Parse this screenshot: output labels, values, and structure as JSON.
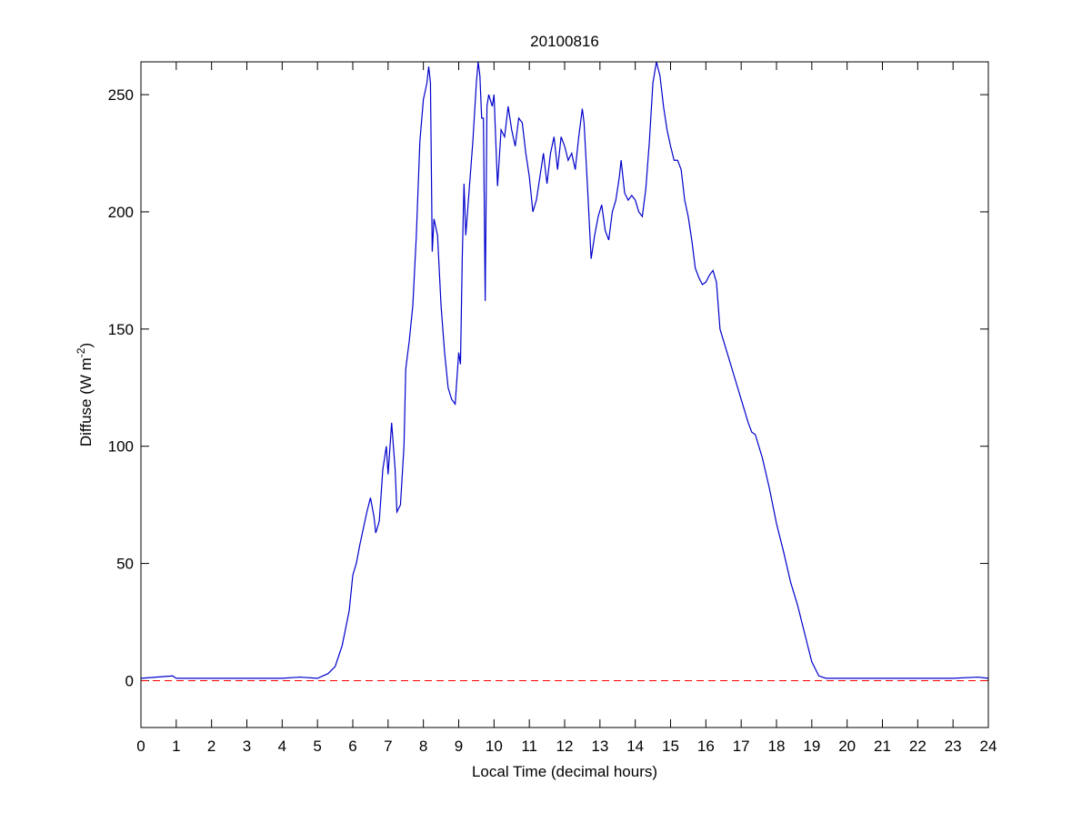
{
  "chart_data": {
    "type": "line",
    "title": "20100816",
    "xlabel": "Local Time (decimal hours)",
    "ylabel": {
      "text": "Diffuse (W m",
      "sup": "-2",
      "tail": ")"
    },
    "color": "#0000cc",
    "x": [
      0,
      0.9,
      1,
      2,
      3,
      4,
      4.5,
      5,
      5.3,
      5.5,
      5.7,
      5.9,
      6.0,
      6.1,
      6.2,
      6.3,
      6.4,
      6.5,
      6.6,
      6.65,
      6.75,
      6.85,
      6.95,
      7.0,
      7.1,
      7.2,
      7.25,
      7.35,
      7.45,
      7.5,
      7.6,
      7.7,
      7.8,
      7.9,
      8.0,
      8.1,
      8.15,
      8.2,
      8.25,
      8.3,
      8.4,
      8.5,
      8.6,
      8.7,
      8.8,
      8.9,
      9.0,
      9.05,
      9.1,
      9.15,
      9.2,
      9.3,
      9.4,
      9.5,
      9.55,
      9.6,
      9.65,
      9.7,
      9.75,
      9.8,
      9.85,
      9.95,
      10.0,
      10.05,
      10.1,
      10.2,
      10.3,
      10.4,
      10.5,
      10.6,
      10.7,
      10.8,
      10.9,
      11.0,
      11.1,
      11.2,
      11.3,
      11.4,
      11.5,
      11.6,
      11.7,
      11.8,
      11.9,
      12.0,
      12.1,
      12.2,
      12.3,
      12.4,
      12.5,
      12.55,
      12.65,
      12.75,
      12.85,
      12.95,
      13.05,
      13.15,
      13.25,
      13.35,
      13.45,
      13.55,
      13.6,
      13.7,
      13.8,
      13.9,
      14.0,
      14.1,
      14.2,
      14.3,
      14.4,
      14.5,
      14.6,
      14.7,
      14.8,
      14.9,
      15.0,
      15.1,
      15.2,
      15.3,
      15.4,
      15.5,
      15.6,
      15.7,
      15.8,
      15.9,
      16.0,
      16.1,
      16.2,
      16.3,
      16.4,
      16.6,
      16.8,
      17.0,
      17.2,
      17.3,
      17.4,
      17.6,
      17.8,
      18.0,
      18.2,
      18.4,
      18.6,
      18.8,
      19.0,
      19.2,
      19.4,
      20,
      21,
      22,
      23,
      23.7,
      24
    ],
    "values": [
      1,
      2,
      1,
      1,
      1,
      1,
      1.5,
      1,
      3,
      6,
      15,
      30,
      45,
      50,
      58,
      65,
      72,
      78,
      70,
      63,
      68,
      90,
      100,
      88,
      110,
      90,
      72,
      75,
      100,
      133,
      145,
      160,
      190,
      230,
      248,
      255,
      262,
      255,
      183,
      197,
      190,
      160,
      140,
      125,
      120,
      118,
      140,
      135,
      180,
      212,
      190,
      210,
      230,
      255,
      264,
      258,
      240,
      240,
      162,
      245,
      250,
      245,
      250,
      230,
      211,
      235,
      232,
      245,
      235,
      228,
      240,
      238,
      225,
      215,
      200,
      205,
      215,
      225,
      212,
      225,
      232,
      218,
      232,
      228,
      222,
      225,
      218,
      232,
      244,
      238,
      210,
      180,
      190,
      198,
      203,
      192,
      188,
      200,
      205,
      215,
      222,
      208,
      205,
      207,
      205,
      200,
      198,
      210,
      230,
      255,
      264,
      258,
      245,
      235,
      228,
      222,
      222,
      218,
      205,
      198,
      188,
      176,
      172,
      169,
      170,
      173,
      175,
      170,
      150,
      140,
      130,
      120,
      110,
      106,
      105,
      95,
      82,
      67,
      55,
      42,
      32,
      20,
      8,
      2,
      1,
      1,
      1,
      1,
      1,
      1.5,
      1
    ],
    "xlim": [
      0,
      24
    ],
    "xticks": [
      0,
      1,
      2,
      3,
      4,
      5,
      6,
      7,
      8,
      9,
      10,
      11,
      12,
      13,
      14,
      15,
      16,
      17,
      18,
      19,
      20,
      21,
      22,
      23,
      24
    ],
    "ylim": [
      -20,
      264
    ],
    "yticks": [
      0,
      50,
      100,
      150,
      200,
      250
    ],
    "hline": {
      "y": 0,
      "color": "#ff0000",
      "style": "dashed"
    },
    "grid": false
  }
}
